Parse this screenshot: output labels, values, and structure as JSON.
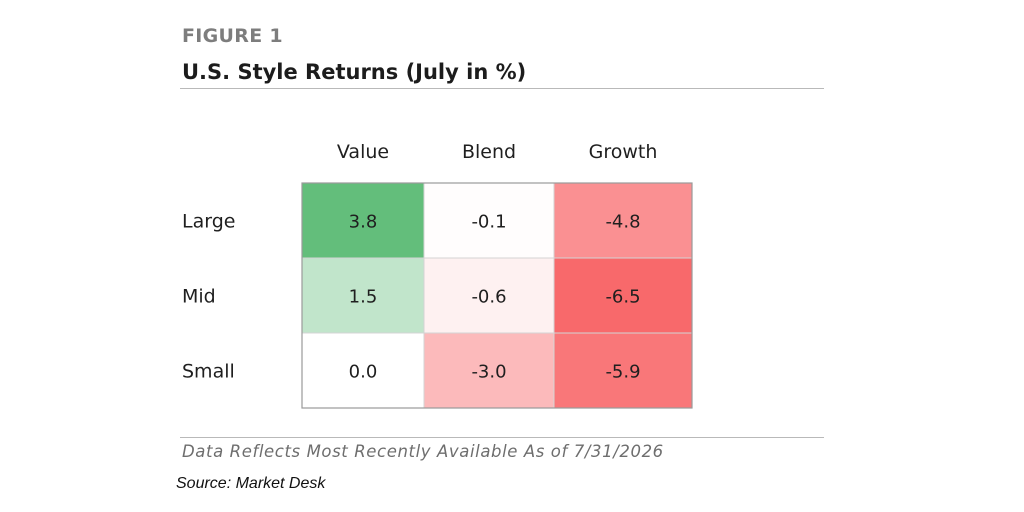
{
  "figure": {
    "label": "FIGURE 1",
    "title": "U.S. Style Returns (July in %)",
    "note": "Data Reflects Most Recently Available As of 7/31/2026",
    "source": "Source: Market Desk"
  },
  "chart_data": {
    "type": "heatmap",
    "title": "U.S. Style Returns (July in %)",
    "columns": [
      "Value",
      "Blend",
      "Growth"
    ],
    "rows": [
      "Large",
      "Mid",
      "Small"
    ],
    "values": [
      [
        3.8,
        -0.1,
        -4.8
      ],
      [
        1.5,
        -0.6,
        -6.5
      ],
      [
        0.0,
        -3.0,
        -5.9
      ]
    ],
    "labels": [
      [
        "3.8",
        "-0.1",
        "-4.8"
      ],
      [
        "1.5",
        "-0.6",
        "-6.5"
      ],
      [
        "0.0",
        "-3.0",
        "-5.9"
      ]
    ],
    "colors": {
      "positive": "#63be7b",
      "neutral": "#ffffff",
      "negative": "#f8696b"
    }
  }
}
